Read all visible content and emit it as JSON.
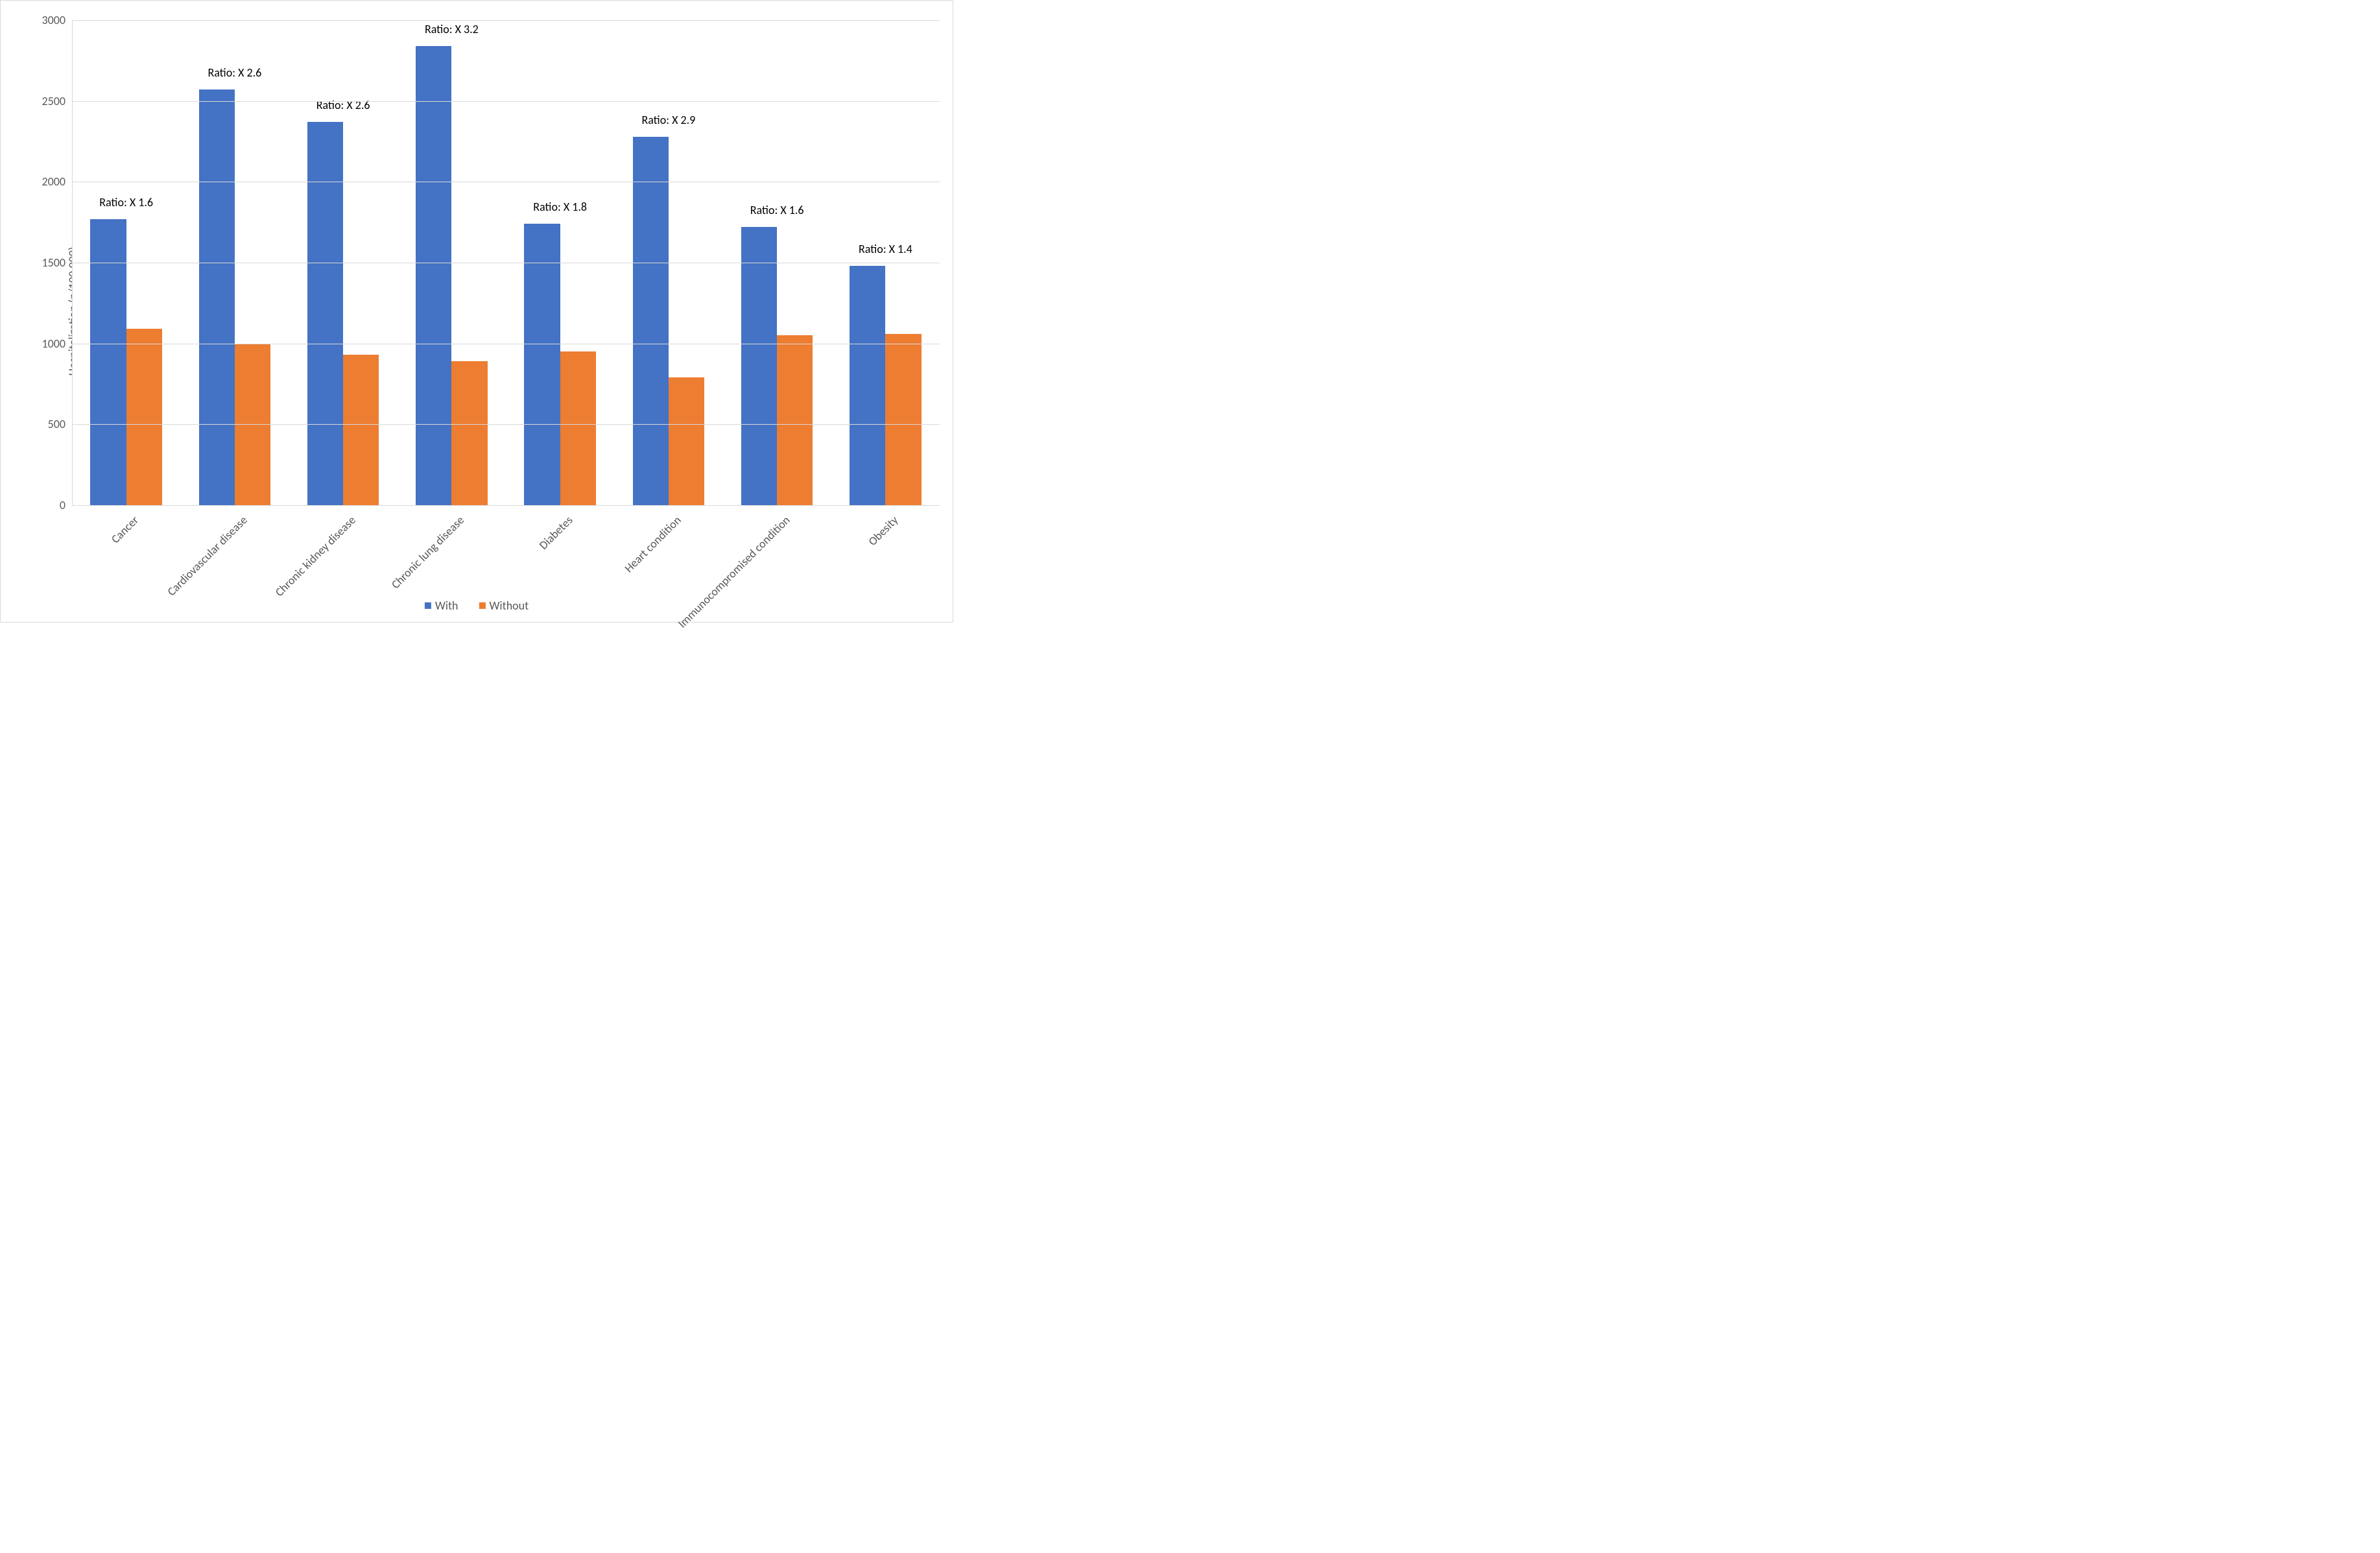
{
  "chart": {
    "type": "bar",
    "ylabel": "Hospitalization (n/100,000)",
    "y_label_fontsize": 18,
    "ylim": [
      0,
      3000
    ],
    "ytick_step": 500,
    "yticks": [
      0,
      500,
      1000,
      1500,
      2000,
      2500,
      3000
    ],
    "tick_fontsize": 18,
    "tick_color": "#595959",
    "background_color": "#ffffff",
    "grid_color": "#d9d9d9",
    "border_color": "#d9d9d9",
    "series": [
      {
        "name": "With",
        "color": "#4472c4"
      },
      {
        "name": "Without",
        "color": "#ed7d31"
      }
    ],
    "bar_width_ratio": 0.33,
    "categories": [
      {
        "label": "Cancer",
        "with": 1770,
        "without": 1090,
        "ratio": "Ratio: X 1.6"
      },
      {
        "label": "Cardiovascular disease",
        "with": 2570,
        "without": 1000,
        "ratio": "Ratio: X 2.6"
      },
      {
        "label": "Chronic kidney disease",
        "with": 2370,
        "without": 930,
        "ratio": "Ratio: X 2.6"
      },
      {
        "label": "Chronic lung disease",
        "with": 2840,
        "without": 890,
        "ratio": "Ratio: X 3.2"
      },
      {
        "label": "Diabetes",
        "with": 1740,
        "without": 950,
        "ratio": "Ratio: X 1.8"
      },
      {
        "label": "Heart condition",
        "with": 2280,
        "without": 790,
        "ratio": "Ratio: X 2.9"
      },
      {
        "label": "Immunocompromised condition",
        "with": 1720,
        "without": 1050,
        "ratio": "Ratio: X 1.6"
      },
      {
        "label": "Obesity",
        "with": 1480,
        "without": 1060,
        "ratio": "Ratio: X 1.4"
      }
    ],
    "ratio_label_fontsize": 18,
    "ratio_label_color": "#000000",
    "x_label_fontsize": 18,
    "x_label_rotation_deg": -45,
    "legend_fontsize": 18
  }
}
